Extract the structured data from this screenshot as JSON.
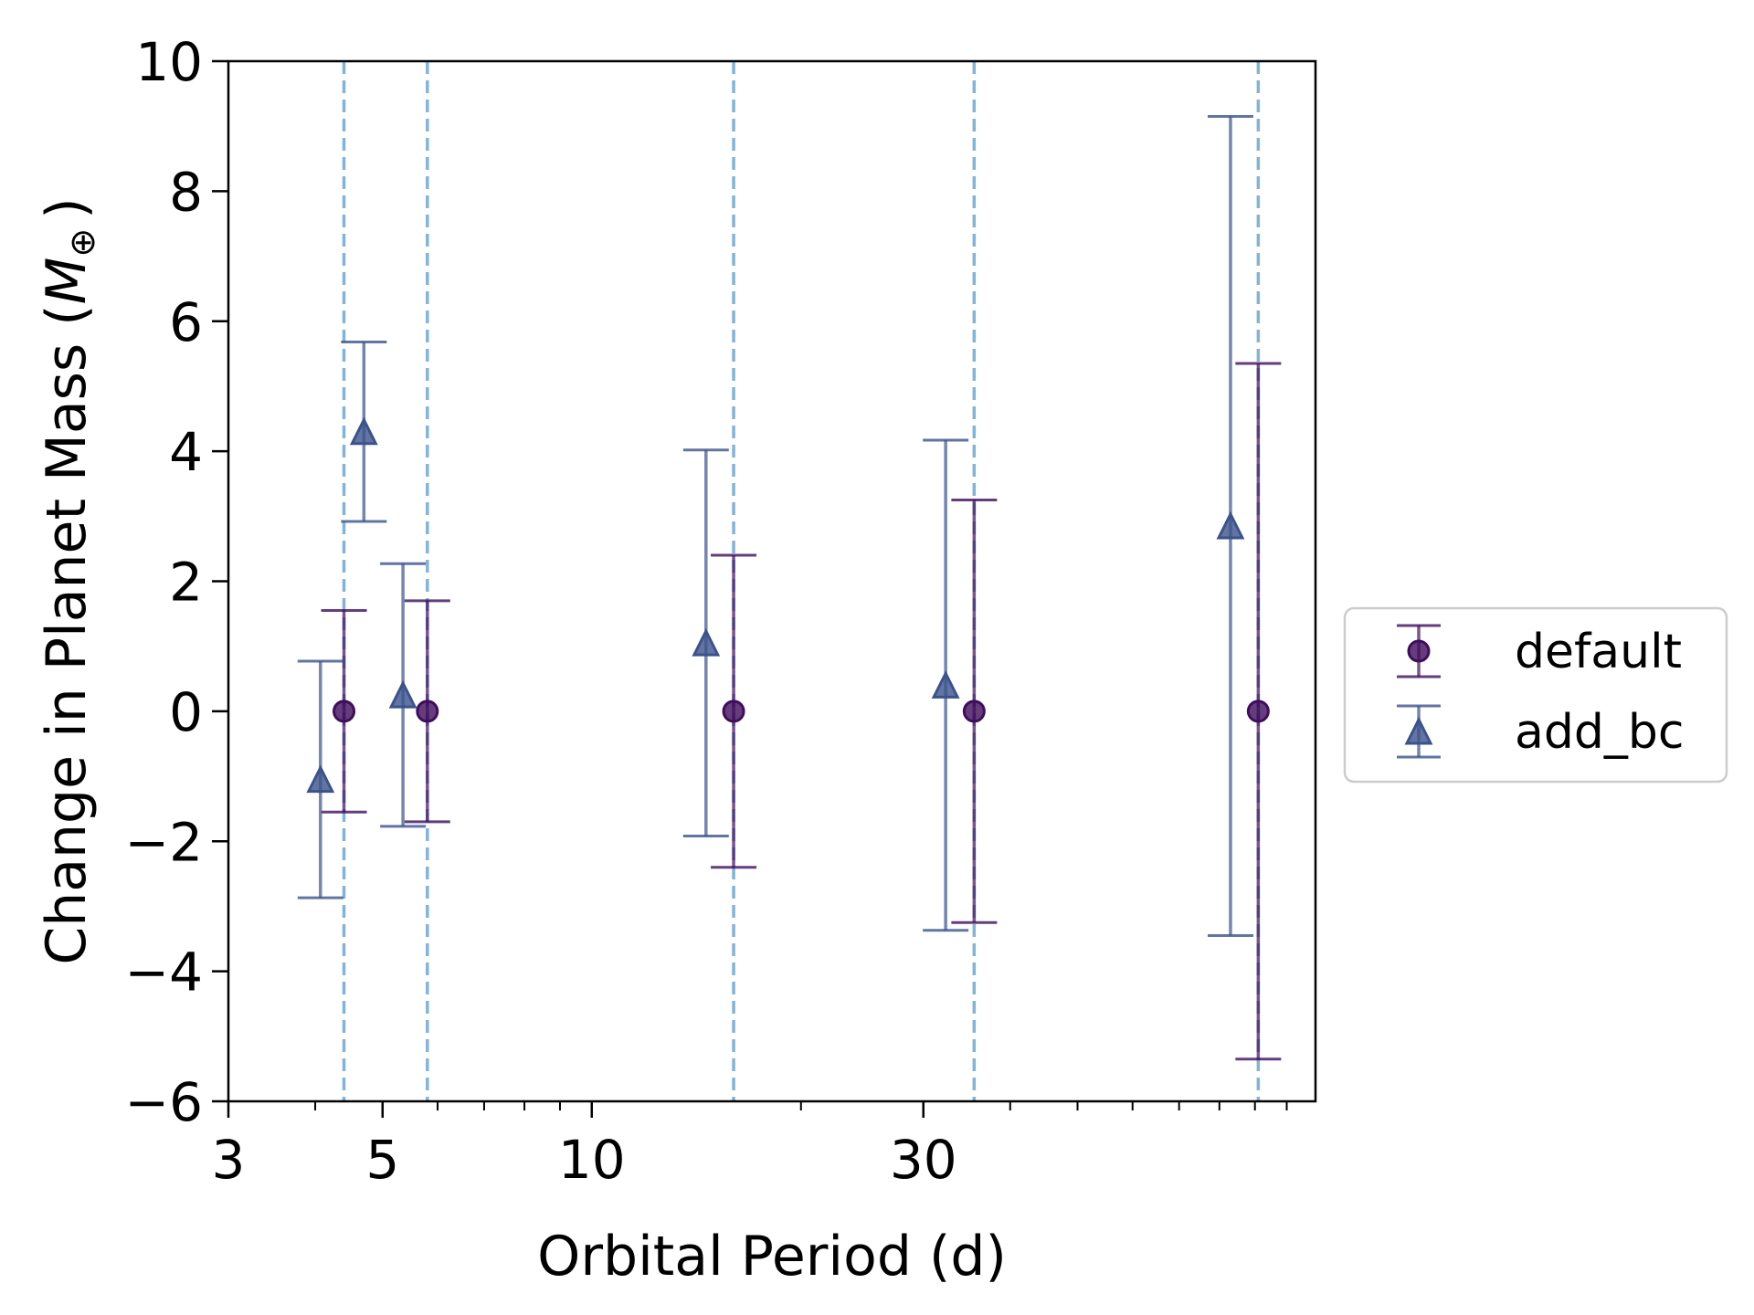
{
  "chart_data": {
    "type": "scatter",
    "xlabel": "Orbital Period (d)",
    "ylabel_main": "Change in Planet Mass (",
    "ylabel_symbol": "M",
    "ylabel_subscript": "⊕",
    "ylabel_close": ")",
    "x_scale": "log",
    "xlim": [
      3,
      110
    ],
    "ylim": [
      -6,
      10
    ],
    "x_major_ticks": [
      3,
      5,
      10,
      30
    ],
    "x_minor_ticks": [
      4,
      6,
      7,
      8,
      9,
      20,
      40,
      50,
      60,
      70,
      80,
      90,
      100
    ],
    "y_ticks": [
      -6,
      -4,
      -2,
      0,
      2,
      4,
      6,
      8,
      10
    ],
    "y_tick_labels": [
      "−6",
      "−4",
      "−2",
      "0",
      "2",
      "4",
      "6",
      "8",
      "10"
    ],
    "vlines": [
      4.4,
      5.8,
      16.0,
      35.5,
      91.0
    ],
    "legend_position": "outside-right",
    "grid": false,
    "series": [
      {
        "name": "default",
        "marker": "circle",
        "color": "#3f0d5c",
        "points": [
          {
            "x": 4.4,
            "y": 0,
            "err": 1.55
          },
          {
            "x": 5.8,
            "y": 0,
            "err": 1.7
          },
          {
            "x": 16.0,
            "y": 0,
            "err": 2.4
          },
          {
            "x": 35.5,
            "y": 0,
            "err": 3.25
          },
          {
            "x": 91.0,
            "y": 0,
            "err": 5.35
          }
        ]
      },
      {
        "name": "add_bc",
        "marker": "triangle",
        "color": "#3b528b",
        "points": [
          {
            "x": 4.07,
            "y": -1.05,
            "err": 1.82
          },
          {
            "x": 4.7,
            "y": 4.3,
            "err": 1.38
          },
          {
            "x": 5.35,
            "y": 0.25,
            "err": 2.02
          },
          {
            "x": 14.6,
            "y": 1.05,
            "err": 2.97
          },
          {
            "x": 32.3,
            "y": 0.4,
            "err": 3.77
          },
          {
            "x": 83.0,
            "y": 2.85,
            "err": 6.3
          }
        ]
      }
    ]
  }
}
